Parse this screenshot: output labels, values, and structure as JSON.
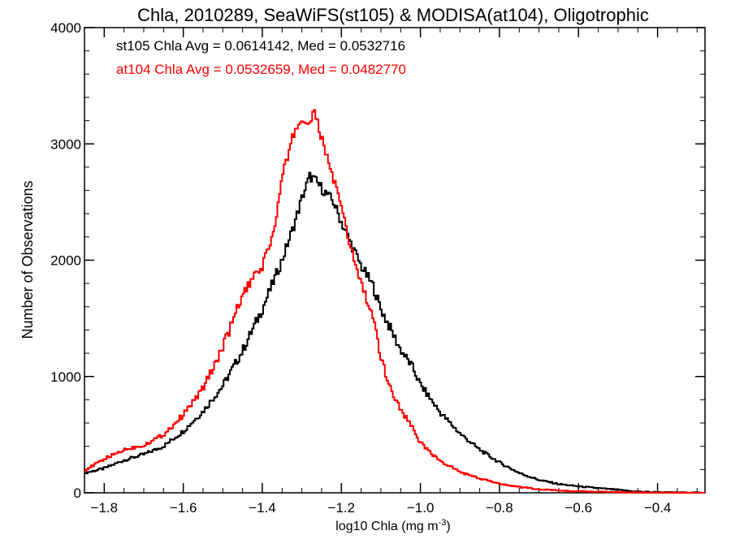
{
  "chart_data": {
    "type": "line",
    "style": "histogram-step",
    "title": "Chla, 2010289, SeaWiFS(st105) & MODISA(at104), Oligotrophic",
    "xlabel": "log10 Chla (mg m",
    "xlabel_sup": "-3",
    "xlabel_end": ")",
    "ylabel": "Number of Observations",
    "xlim": [
      -1.85,
      -0.28
    ],
    "ylim": [
      0,
      4000
    ],
    "xticks": [
      -1.8,
      -1.6,
      -1.4,
      -1.2,
      -1.0,
      -0.8,
      -0.6,
      -0.4
    ],
    "xtick_labels": [
      "−1.8",
      "−1.6",
      "−1.4",
      "−1.2",
      "−1.0",
      "−0.8",
      "−0.6",
      "−0.4"
    ],
    "yticks": [
      0,
      1000,
      2000,
      3000,
      4000
    ],
    "ytick_labels": [
      "0",
      "1000",
      "2000",
      "3000",
      "4000"
    ],
    "grid": false,
    "legend_position": "top-left",
    "series": [
      {
        "label": "st105 Chla Avg = 0.0614142, Med = 0.0532716",
        "color": "#000000",
        "points": [
          [
            -1.85,
            170
          ],
          [
            -1.8,
            210
          ],
          [
            -1.75,
            280
          ],
          [
            -1.7,
            330
          ],
          [
            -1.65,
            400
          ],
          [
            -1.6,
            530
          ],
          [
            -1.55,
            700
          ],
          [
            -1.5,
            920
          ],
          [
            -1.45,
            1220
          ],
          [
            -1.4,
            1580
          ],
          [
            -1.35,
            2000
          ],
          [
            -1.32,
            2300
          ],
          [
            -1.3,
            2530
          ],
          [
            -1.28,
            2720
          ],
          [
            -1.27,
            2700
          ],
          [
            -1.25,
            2620
          ],
          [
            -1.22,
            2500
          ],
          [
            -1.2,
            2330
          ],
          [
            -1.17,
            2100
          ],
          [
            -1.15,
            1950
          ],
          [
            -1.12,
            1780
          ],
          [
            -1.1,
            1580
          ],
          [
            -1.07,
            1370
          ],
          [
            -1.05,
            1230
          ],
          [
            -1.02,
            1080
          ],
          [
            -1.0,
            930
          ],
          [
            -0.95,
            690
          ],
          [
            -0.9,
            510
          ],
          [
            -0.85,
            370
          ],
          [
            -0.8,
            260
          ],
          [
            -0.75,
            170
          ],
          [
            -0.7,
            110
          ],
          [
            -0.65,
            75
          ],
          [
            -0.6,
            55
          ],
          [
            -0.55,
            40
          ],
          [
            -0.5,
            25
          ],
          [
            -0.45,
            10
          ],
          [
            -0.4,
            5
          ],
          [
            -0.35,
            2
          ],
          [
            -0.28,
            0
          ]
        ]
      },
      {
        "label": "at104 Chla Avg = 0.0532659, Med = 0.0482770",
        "color": "#ff0000",
        "points": [
          [
            -1.85,
            190
          ],
          [
            -1.8,
            290
          ],
          [
            -1.75,
            370
          ],
          [
            -1.7,
            410
          ],
          [
            -1.65,
            500
          ],
          [
            -1.6,
            670
          ],
          [
            -1.55,
            900
          ],
          [
            -1.5,
            1250
          ],
          [
            -1.45,
            1700
          ],
          [
            -1.4,
            1950
          ],
          [
            -1.37,
            2250
          ],
          [
            -1.35,
            2700
          ],
          [
            -1.32,
            3100
          ],
          [
            -1.3,
            3200
          ],
          [
            -1.28,
            3180
          ],
          [
            -1.27,
            3280
          ],
          [
            -1.25,
            3050
          ],
          [
            -1.22,
            2700
          ],
          [
            -1.2,
            2450
          ],
          [
            -1.18,
            2150
          ],
          [
            -1.15,
            1800
          ],
          [
            -1.12,
            1500
          ],
          [
            -1.1,
            1150
          ],
          [
            -1.07,
            850
          ],
          [
            -1.05,
            720
          ],
          [
            -1.02,
            560
          ],
          [
            -1.0,
            430
          ],
          [
            -0.95,
            270
          ],
          [
            -0.9,
            180
          ],
          [
            -0.85,
            120
          ],
          [
            -0.8,
            80
          ],
          [
            -0.75,
            50
          ],
          [
            -0.7,
            30
          ],
          [
            -0.65,
            20
          ],
          [
            -0.6,
            12
          ],
          [
            -0.55,
            8
          ],
          [
            -0.5,
            5
          ],
          [
            -0.45,
            2
          ],
          [
            -0.4,
            0
          ],
          [
            -0.28,
            0
          ]
        ]
      }
    ]
  }
}
